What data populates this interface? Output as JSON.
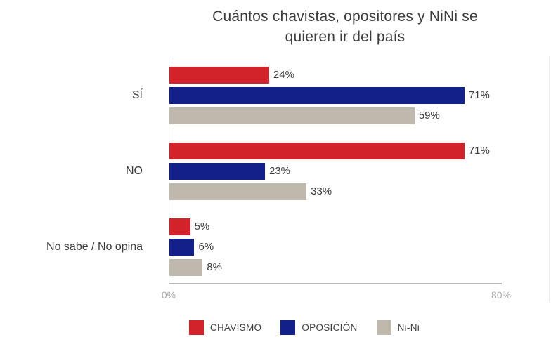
{
  "title": {
    "line1": "Cuántos chavistas, opositores y NiNi se",
    "line2": "quieren ir del país"
  },
  "chart_data": {
    "type": "bar",
    "orientation": "horizontal",
    "title": "Cuántos chavistas, opositores y NiNi se quieren ir del país",
    "categories": [
      "SÍ",
      "NO",
      "No sabe / No opina"
    ],
    "series": [
      {
        "name": "CHAVISMO",
        "color": "#d2232a",
        "values": [
          24,
          71,
          5
        ]
      },
      {
        "name": "OPOSICIÓN",
        "color": "#14208a",
        "values": [
          71,
          23,
          6
        ]
      },
      {
        "name": "Ni-Ni",
        "color": "#bfb8ac",
        "values": [
          59,
          33,
          8
        ]
      }
    ],
    "value_suffix": "%",
    "xlim": [
      0,
      80
    ],
    "x_ticks": [
      "0%",
      "80%"
    ],
    "legend_position": "bottom",
    "grid": false
  }
}
